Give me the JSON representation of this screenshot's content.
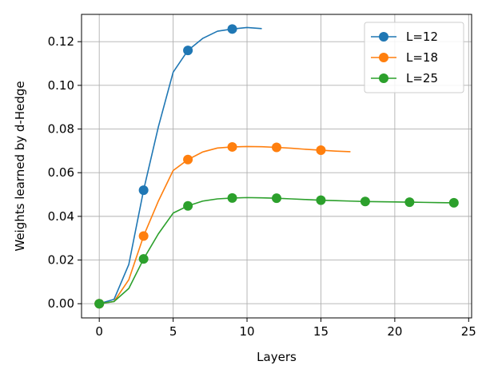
{
  "chart_data": {
    "type": "line",
    "title": "",
    "xlabel": "Layers",
    "ylabel": "Weights learned by d-Hedge",
    "xlim": [
      -1.2,
      25.2
    ],
    "ylim": [
      -0.0065,
      0.1325
    ],
    "xticks": [
      0,
      5,
      10,
      15,
      20,
      25
    ],
    "xtick_labels": [
      "0",
      "5",
      "10",
      "15",
      "20",
      "25"
    ],
    "yticks": [
      0.0,
      0.02,
      0.04,
      0.06,
      0.08,
      0.1,
      0.12
    ],
    "ytick_labels": [
      "0.00",
      "0.02",
      "0.04",
      "0.06",
      "0.08",
      "0.10",
      "0.12"
    ],
    "grid": true,
    "legend_position": "top-right",
    "series": [
      {
        "name": "L=12",
        "color": "#1f77b4",
        "x": [
          0,
          1,
          2,
          3,
          4,
          5,
          6,
          7,
          8,
          9,
          10,
          11
        ],
        "y": [
          0.0,
          0.002,
          0.018,
          0.052,
          0.081,
          0.106,
          0.116,
          0.1215,
          0.1248,
          0.1258,
          0.1265,
          0.126
        ],
        "marker_every": 3
      },
      {
        "name": "L=18",
        "color": "#ff7f0e",
        "x": [
          0,
          1,
          2,
          3,
          4,
          5,
          6,
          7,
          8,
          9,
          10,
          11,
          12,
          13,
          14,
          15,
          16,
          17
        ],
        "y": [
          0.0,
          0.001,
          0.011,
          0.031,
          0.047,
          0.061,
          0.066,
          0.0695,
          0.0713,
          0.0718,
          0.072,
          0.0719,
          0.0716,
          0.0712,
          0.0707,
          0.0703,
          0.0699,
          0.0696
        ],
        "marker_every": 3
      },
      {
        "name": "L=25",
        "color": "#2ca02c",
        "x": [
          0,
          1,
          2,
          3,
          4,
          5,
          6,
          7,
          8,
          9,
          10,
          11,
          12,
          13,
          14,
          15,
          16,
          17,
          18,
          19,
          20,
          21,
          22,
          23,
          24
        ],
        "y": [
          0.0,
          0.001,
          0.007,
          0.0205,
          0.032,
          0.0415,
          0.0448,
          0.047,
          0.048,
          0.0484,
          0.0486,
          0.0485,
          0.0483,
          0.048,
          0.0477,
          0.0474,
          0.0472,
          0.047,
          0.0468,
          0.0467,
          0.0466,
          0.0465,
          0.0464,
          0.0463,
          0.0462
        ],
        "marker_every": 3
      }
    ]
  }
}
